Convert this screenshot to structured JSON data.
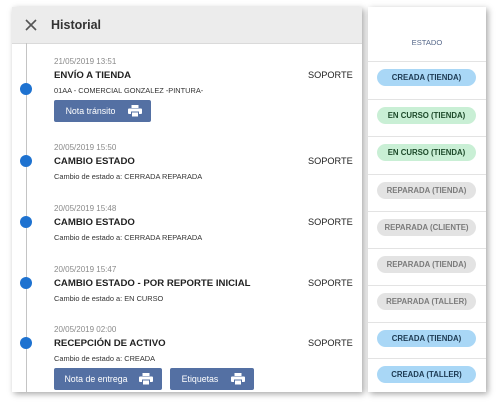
{
  "header": {
    "title": "Historial"
  },
  "colors": {
    "accent": "#1e72d0",
    "button": "#5470a3",
    "pill_blue_bg": "#a9d7f6",
    "pill_blue_fg": "#1d3a52",
    "pill_green_bg": "#c9efd5",
    "pill_green_fg": "#1d4a2a",
    "pill_grey_bg": "#e3e3e3",
    "pill_grey_fg": "#7b7b7b"
  },
  "entries": [
    {
      "date": "21/05/2019 13:51",
      "title": "ENVÍO A TIENDA",
      "desc": "01AA - COMERCIAL GONZALEZ -PINTURA-",
      "user": "SOPORTE",
      "buttons": [
        "Nota tránsito"
      ]
    },
    {
      "date": "20/05/2019 15:50",
      "title": "CAMBIO ESTADO",
      "desc": "Cambio de estado a: CERRADA REPARADA",
      "user": "SOPORTE",
      "buttons": []
    },
    {
      "date": "20/05/2019 15:48",
      "title": "CAMBIO ESTADO",
      "desc": "Cambio de estado a: CERRADA REPARADA",
      "user": "SOPORTE",
      "buttons": []
    },
    {
      "date": "20/05/2019 15:47",
      "title": "CAMBIO ESTADO - POR REPORTE INICIAL",
      "desc": "Cambio de estado a: EN CURSO",
      "user": "SOPORTE",
      "buttons": []
    },
    {
      "date": "20/05/2019 02:00",
      "title": "RECEPCIÓN DE ACTIVO",
      "desc": "Cambio de estado a: CREADA",
      "user": "SOPORTE",
      "buttons": [
        "Nota de entrega",
        "Etiquetas"
      ]
    }
  ],
  "status_column": {
    "header": "ESTADO",
    "pills": [
      {
        "label": "CREADA (TIENDA)",
        "style": "blue"
      },
      {
        "label": "EN CURSO (TIENDA)",
        "style": "green"
      },
      {
        "label": "EN CURSO (TIENDA)",
        "style": "green"
      },
      {
        "label": "REPARADA (TIENDA)",
        "style": "grey"
      },
      {
        "label": "REPARADA (CLIENTE)",
        "style": "grey"
      },
      {
        "label": "REPARADA (TIENDA)",
        "style": "grey"
      },
      {
        "label": "REPARADA (TALLER)",
        "style": "grey"
      },
      {
        "label": "CREADA (TIENDA)",
        "style": "blue"
      },
      {
        "label": "CREADA (TALLER)",
        "style": "blue"
      }
    ]
  }
}
